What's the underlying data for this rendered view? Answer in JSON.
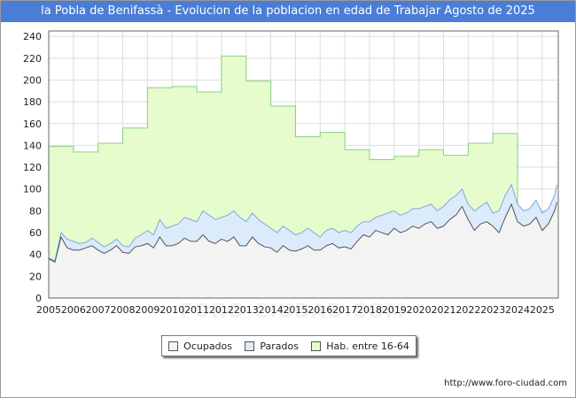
{
  "page": {
    "title": "la Pobla de Benifassà - Evolucion de la poblacion en edad de Trabajar Agosto de 2025",
    "watermark": "FORO-CIUDAD.COM",
    "footer_url": "http://www.foro-ciudad.com"
  },
  "colors": {
    "title_bg": "#4a7dd6",
    "hab_fill": "#e6fccd",
    "hab_line": "#8dcf7c",
    "parados_fill": "#dcebfc",
    "parados_line": "#7fa8d8",
    "ocupados_fill": "#f3f3f3",
    "ocupados_line": "#555555",
    "grid": "#dddddd"
  },
  "chart_data": {
    "type": "area",
    "title": "la Pobla de Benifassà - Evolucion de la poblacion en edad de Trabajar Agosto de 2025",
    "xlabel": "",
    "ylabel": "",
    "ylim": [
      0,
      245
    ],
    "xlim": [
      2005,
      2025.65
    ],
    "yticks": [
      0,
      20,
      40,
      60,
      80,
      100,
      120,
      140,
      160,
      180,
      200,
      220,
      240
    ],
    "xticks": [
      "2005",
      "2006",
      "2007",
      "2008",
      "2009",
      "2010",
      "2011",
      "2012",
      "2013",
      "2014",
      "2015",
      "2016",
      "2017",
      "2018",
      "2019",
      "2020",
      "2021",
      "2022",
      "2023",
      "2024",
      "2025"
    ],
    "grid": true,
    "legend": [
      "Ocupados",
      "Parados",
      "Hab. entre 16-64"
    ],
    "legend_position": "bottom-center",
    "hab_entre_16_64": [
      {
        "year": 2005,
        "value": 139
      },
      {
        "year": 2006,
        "value": 134
      },
      {
        "year": 2007,
        "value": 142
      },
      {
        "year": 2008,
        "value": 156
      },
      {
        "year": 2009,
        "value": 193
      },
      {
        "year": 2010,
        "value": 194
      },
      {
        "year": 2011,
        "value": 189
      },
      {
        "year": 2012,
        "value": 222
      },
      {
        "year": 2013,
        "value": 199
      },
      {
        "year": 2014,
        "value": 176
      },
      {
        "year": 2015,
        "value": 148
      },
      {
        "year": 2016,
        "value": 152
      },
      {
        "year": 2017,
        "value": 136
      },
      {
        "year": 2018,
        "value": 127
      },
      {
        "year": 2019,
        "value": 130
      },
      {
        "year": 2020,
        "value": 136
      },
      {
        "year": 2021,
        "value": 131
      },
      {
        "year": 2022,
        "value": 142
      },
      {
        "year": 2023,
        "value": 151
      }
    ],
    "parados_total": {
      "x": [
        2005.0,
        2005.25,
        2005.5,
        2005.75,
        2006.0,
        2006.25,
        2006.5,
        2006.75,
        2007.0,
        2007.25,
        2007.5,
        2007.75,
        2008.0,
        2008.25,
        2008.5,
        2008.75,
        2009.0,
        2009.25,
        2009.5,
        2009.75,
        2010.0,
        2010.25,
        2010.5,
        2010.75,
        2011.0,
        2011.25,
        2011.5,
        2011.75,
        2012.0,
        2012.25,
        2012.5,
        2012.75,
        2013.0,
        2013.25,
        2013.5,
        2013.75,
        2014.0,
        2014.25,
        2014.5,
        2014.75,
        2015.0,
        2015.25,
        2015.5,
        2015.75,
        2016.0,
        2016.25,
        2016.5,
        2016.75,
        2017.0,
        2017.25,
        2017.5,
        2017.75,
        2018.0,
        2018.25,
        2018.5,
        2018.75,
        2019.0,
        2019.25,
        2019.5,
        2019.75,
        2020.0,
        2020.25,
        2020.5,
        2020.75,
        2021.0,
        2021.25,
        2021.5,
        2021.75,
        2022.0,
        2022.25,
        2022.5,
        2022.75,
        2023.0,
        2023.25,
        2023.5,
        2023.75,
        2024.0,
        2024.25,
        2024.5,
        2024.75,
        2025.0,
        2025.25,
        2025.5,
        2025.6
      ],
      "values": [
        37,
        34,
        60,
        54,
        52,
        50,
        51,
        55,
        51,
        47,
        50,
        54,
        48,
        47,
        55,
        58,
        62,
        58,
        72,
        64,
        66,
        68,
        74,
        72,
        70,
        80,
        76,
        72,
        74,
        76,
        80,
        74,
        70,
        78,
        72,
        68,
        64,
        60,
        66,
        62,
        58,
        60,
        64,
        60,
        56,
        62,
        64,
        60,
        62,
        60,
        66,
        70,
        70,
        74,
        76,
        78,
        80,
        76,
        78,
        82,
        82,
        84,
        86,
        80,
        84,
        90,
        94,
        100,
        86,
        80,
        84,
        88,
        78,
        80,
        94,
        104,
        86,
        80,
        82,
        90,
        78,
        82,
        94,
        104
      ]
    },
    "ocupados": {
      "x": [
        2005.0,
        2005.25,
        2005.5,
        2005.75,
        2006.0,
        2006.25,
        2006.5,
        2006.75,
        2007.0,
        2007.25,
        2007.5,
        2007.75,
        2008.0,
        2008.25,
        2008.5,
        2008.75,
        2009.0,
        2009.25,
        2009.5,
        2009.75,
        2010.0,
        2010.25,
        2010.5,
        2010.75,
        2011.0,
        2011.25,
        2011.5,
        2011.75,
        2012.0,
        2012.25,
        2012.5,
        2012.75,
        2013.0,
        2013.25,
        2013.5,
        2013.75,
        2014.0,
        2014.25,
        2014.5,
        2014.75,
        2015.0,
        2015.25,
        2015.5,
        2015.75,
        2016.0,
        2016.25,
        2016.5,
        2016.75,
        2017.0,
        2017.25,
        2017.5,
        2017.75,
        2018.0,
        2018.25,
        2018.5,
        2018.75,
        2019.0,
        2019.25,
        2019.5,
        2019.75,
        2020.0,
        2020.25,
        2020.5,
        2020.75,
        2021.0,
        2021.25,
        2021.5,
        2021.75,
        2022.0,
        2022.25,
        2022.5,
        2022.75,
        2023.0,
        2023.25,
        2023.5,
        2023.75,
        2024.0,
        2024.25,
        2024.5,
        2024.75,
        2025.0,
        2025.25,
        2025.5,
        2025.6
      ],
      "values": [
        36,
        33,
        56,
        46,
        44,
        44,
        46,
        48,
        44,
        41,
        44,
        48,
        42,
        41,
        47,
        48,
        50,
        46,
        56,
        48,
        48,
        50,
        55,
        52,
        52,
        58,
        52,
        50,
        54,
        52,
        56,
        48,
        48,
        56,
        50,
        47,
        46,
        42,
        48,
        44,
        43,
        45,
        48,
        44,
        44,
        48,
        50,
        46,
        47,
        45,
        52,
        58,
        56,
        62,
        60,
        58,
        64,
        60,
        62,
        66,
        64,
        68,
        70,
        64,
        66,
        72,
        76,
        84,
        72,
        62,
        68,
        70,
        66,
        60,
        74,
        86,
        70,
        66,
        68,
        74,
        62,
        68,
        80,
        88
      ]
    }
  }
}
